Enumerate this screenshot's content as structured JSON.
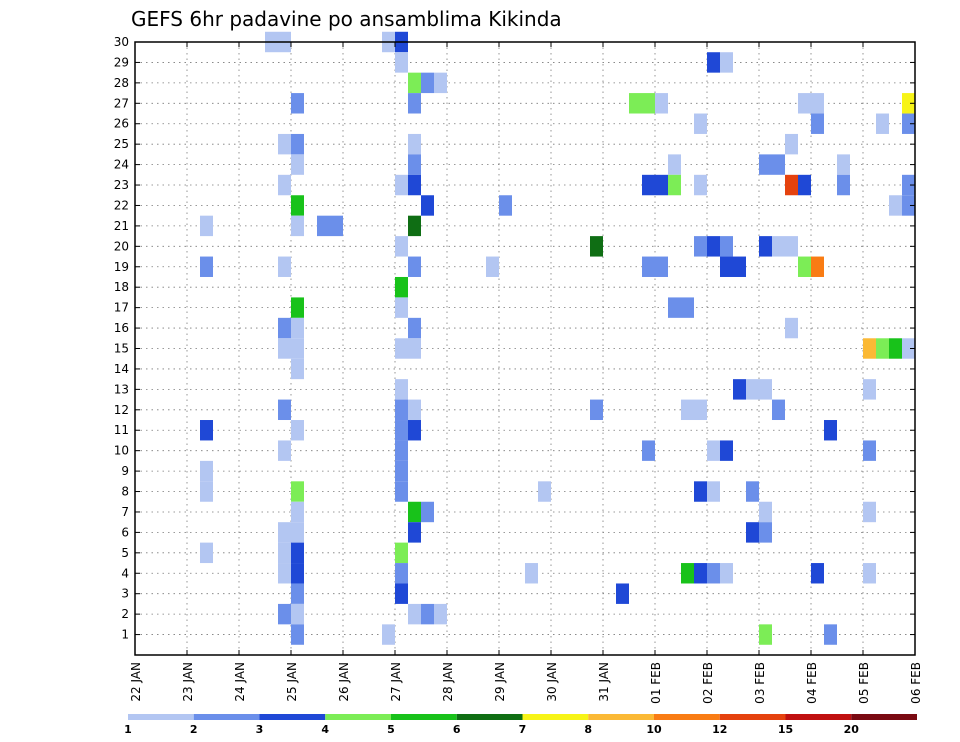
{
  "chart_data": {
    "type": "heatmap",
    "title": "GEFS 6hr padavine po ansamblima Kikinda",
    "xlabel": "",
    "ylabel": "",
    "x_ticks": [
      "22 JAN",
      "23 JAN",
      "24 JAN",
      "25 JAN",
      "26 JAN",
      "27 JAN",
      "28 JAN",
      "29 JAN",
      "30 JAN",
      "31 JAN",
      "01 FEB",
      "02 FEB",
      "03 FEB",
      "04 FEB",
      "05 FEB",
      "06 FEB"
    ],
    "x_range": [
      "22 JAN 00Z",
      "06 FEB 00Z"
    ],
    "time_step_hours": 6,
    "y_ticks": [
      1,
      2,
      3,
      4,
      5,
      6,
      7,
      8,
      9,
      10,
      11,
      12,
      13,
      14,
      15,
      16,
      17,
      18,
      19,
      20,
      21,
      22,
      23,
      24,
      25,
      26,
      27,
      28,
      29,
      30
    ],
    "y_range": [
      0,
      30
    ],
    "grid": true,
    "colorbar": {
      "levels": [
        "1",
        "2",
        "3",
        "4",
        "5",
        "6",
        "7",
        "8",
        "10",
        "12",
        "15",
        "20"
      ],
      "colors": [
        "#b3c6f2",
        "#6b8fea",
        "#1f48d6",
        "#7ced56",
        "#18c21a",
        "#0f6e14",
        "#f7f417",
        "#fbb935",
        "#f97c14",
        "#e5420e",
        "#c01010",
        "#7a0a12"
      ]
    },
    "cells": [
      {
        "x": "24 JAN 12Z",
        "y": 30,
        "c": 0
      },
      {
        "x": "24 JAN 18Z",
        "y": 30,
        "c": 0
      },
      {
        "x": "26 JAN 18Z",
        "y": 30,
        "c": 0
      },
      {
        "x": "27 JAN 00Z",
        "y": 30,
        "c": 2
      },
      {
        "x": "27 JAN 00Z",
        "y": 29,
        "c": 0
      },
      {
        "x": "02 FEB 00Z",
        "y": 29,
        "c": 2
      },
      {
        "x": "02 FEB 06Z",
        "y": 29,
        "c": 0
      },
      {
        "x": "27 JAN 06Z",
        "y": 28,
        "c": 3
      },
      {
        "x": "27 JAN 12Z",
        "y": 28,
        "c": 1
      },
      {
        "x": "27 JAN 18Z",
        "y": 28,
        "c": 0
      },
      {
        "x": "25 JAN 00Z",
        "y": 27,
        "c": 1
      },
      {
        "x": "27 JAN 06Z",
        "y": 27,
        "c": 1
      },
      {
        "x": "31 JAN 12Z",
        "y": 27,
        "c": 3
      },
      {
        "x": "31 JAN 18Z",
        "y": 27,
        "c": 3
      },
      {
        "x": "01 FEB 00Z",
        "y": 27,
        "c": 0
      },
      {
        "x": "03 FEB 18Z",
        "y": 27,
        "c": 0
      },
      {
        "x": "04 FEB 00Z",
        "y": 27,
        "c": 0
      },
      {
        "x": "05 FEB 18Z",
        "y": 27,
        "c": 6
      },
      {
        "x": "01 FEB 18Z",
        "y": 26,
        "c": 0
      },
      {
        "x": "04 FEB 00Z",
        "y": 26,
        "c": 1
      },
      {
        "x": "05 FEB 06Z",
        "y": 26,
        "c": 0
      },
      {
        "x": "05 FEB 18Z",
        "y": 26,
        "c": 1
      },
      {
        "x": "24 JAN 18Z",
        "y": 25,
        "c": 0
      },
      {
        "x": "25 JAN 00Z",
        "y": 25,
        "c": 1
      },
      {
        "x": "27 JAN 06Z",
        "y": 25,
        "c": 0
      },
      {
        "x": "03 FEB 12Z",
        "y": 25,
        "c": 0
      },
      {
        "x": "25 JAN 00Z",
        "y": 24,
        "c": 0
      },
      {
        "x": "27 JAN 06Z",
        "y": 24,
        "c": 1
      },
      {
        "x": "01 FEB 06Z",
        "y": 24,
        "c": 0
      },
      {
        "x": "03 FEB 00Z",
        "y": 24,
        "c": 1
      },
      {
        "x": "03 FEB 06Z",
        "y": 24,
        "c": 1
      },
      {
        "x": "04 FEB 12Z",
        "y": 24,
        "c": 0
      },
      {
        "x": "24 JAN 18Z",
        "y": 23,
        "c": 0
      },
      {
        "x": "27 JAN 00Z",
        "y": 23,
        "c": 0
      },
      {
        "x": "27 JAN 06Z",
        "y": 23,
        "c": 2
      },
      {
        "x": "31 JAN 18Z",
        "y": 23,
        "c": 2
      },
      {
        "x": "01 FEB 00Z",
        "y": 23,
        "c": 2
      },
      {
        "x": "01 FEB 06Z",
        "y": 23,
        "c": 3
      },
      {
        "x": "01 FEB 18Z",
        "y": 23,
        "c": 0
      },
      {
        "x": "03 FEB 12Z",
        "y": 23,
        "c": 9
      },
      {
        "x": "03 FEB 18Z",
        "y": 23,
        "c": 2
      },
      {
        "x": "04 FEB 12Z",
        "y": 23,
        "c": 1
      },
      {
        "x": "05 FEB 18Z",
        "y": 23,
        "c": 1
      },
      {
        "x": "25 JAN 00Z",
        "y": 22,
        "c": 4
      },
      {
        "x": "27 JAN 12Z",
        "y": 22,
        "c": 2
      },
      {
        "x": "29 JAN 00Z",
        "y": 22,
        "c": 1
      },
      {
        "x": "05 FEB 12Z",
        "y": 22,
        "c": 0
      },
      {
        "x": "05 FEB 18Z",
        "y": 22,
        "c": 1
      },
      {
        "x": "23 JAN 06Z",
        "y": 21,
        "c": 0
      },
      {
        "x": "25 JAN 00Z",
        "y": 21,
        "c": 0
      },
      {
        "x": "25 JAN 12Z",
        "y": 21,
        "c": 1
      },
      {
        "x": "25 JAN 18Z",
        "y": 21,
        "c": 1
      },
      {
        "x": "27 JAN 06Z",
        "y": 21,
        "c": 5
      },
      {
        "x": "27 JAN 00Z",
        "y": 20,
        "c": 0
      },
      {
        "x": "30 JAN 18Z",
        "y": 20,
        "c": 5
      },
      {
        "x": "01 FEB 18Z",
        "y": 20,
        "c": 1
      },
      {
        "x": "02 FEB 00Z",
        "y": 20,
        "c": 2
      },
      {
        "x": "02 FEB 06Z",
        "y": 20,
        "c": 1
      },
      {
        "x": "03 FEB 00Z",
        "y": 20,
        "c": 2
      },
      {
        "x": "03 FEB 06Z",
        "y": 20,
        "c": 0
      },
      {
        "x": "03 FEB 12Z",
        "y": 20,
        "c": 0
      },
      {
        "x": "23 JAN 06Z",
        "y": 19,
        "c": 1
      },
      {
        "x": "24 JAN 18Z",
        "y": 19,
        "c": 0
      },
      {
        "x": "27 JAN 06Z",
        "y": 19,
        "c": 1
      },
      {
        "x": "28 JAN 18Z",
        "y": 19,
        "c": 0
      },
      {
        "x": "31 JAN 18Z",
        "y": 19,
        "c": 1
      },
      {
        "x": "01 FEB 00Z",
        "y": 19,
        "c": 1
      },
      {
        "x": "02 FEB 06Z",
        "y": 19,
        "c": 2
      },
      {
        "x": "02 FEB 12Z",
        "y": 19,
        "c": 2
      },
      {
        "x": "03 FEB 18Z",
        "y": 19,
        "c": 3
      },
      {
        "x": "04 FEB 00Z",
        "y": 19,
        "c": 8
      },
      {
        "x": "27 JAN 00Z",
        "y": 18,
        "c": 4
      },
      {
        "x": "25 JAN 00Z",
        "y": 17,
        "c": 4
      },
      {
        "x": "27 JAN 00Z",
        "y": 17,
        "c": 0
      },
      {
        "x": "01 FEB 06Z",
        "y": 17,
        "c": 1
      },
      {
        "x": "01 FEB 12Z",
        "y": 17,
        "c": 1
      },
      {
        "x": "24 JAN 18Z",
        "y": 16,
        "c": 1
      },
      {
        "x": "25 JAN 00Z",
        "y": 16,
        "c": 0
      },
      {
        "x": "27 JAN 06Z",
        "y": 16,
        "c": 1
      },
      {
        "x": "03 FEB 12Z",
        "y": 16,
        "c": 0
      },
      {
        "x": "24 JAN 18Z",
        "y": 15,
        "c": 0
      },
      {
        "x": "25 JAN 00Z",
        "y": 15,
        "c": 0
      },
      {
        "x": "27 JAN 00Z",
        "y": 15,
        "c": 0
      },
      {
        "x": "27 JAN 06Z",
        "y": 15,
        "c": 0
      },
      {
        "x": "05 FEB 00Z",
        "y": 15,
        "c": 7
      },
      {
        "x": "05 FEB 06Z",
        "y": 15,
        "c": 3
      },
      {
        "x": "05 FEB 12Z",
        "y": 15,
        "c": 4
      },
      {
        "x": "05 FEB 18Z",
        "y": 15,
        "c": 0
      },
      {
        "x": "25 JAN 00Z",
        "y": 14,
        "c": 0
      },
      {
        "x": "27 JAN 00Z",
        "y": 13,
        "c": 0
      },
      {
        "x": "02 FEB 12Z",
        "y": 13,
        "c": 2
      },
      {
        "x": "02 FEB 18Z",
        "y": 13,
        "c": 0
      },
      {
        "x": "03 FEB 00Z",
        "y": 13,
        "c": 0
      },
      {
        "x": "05 FEB 00Z",
        "y": 13,
        "c": 0
      },
      {
        "x": "24 JAN 18Z",
        "y": 12,
        "c": 1
      },
      {
        "x": "27 JAN 00Z",
        "y": 12,
        "c": 1
      },
      {
        "x": "27 JAN 06Z",
        "y": 12,
        "c": 0
      },
      {
        "x": "30 JAN 18Z",
        "y": 12,
        "c": 1
      },
      {
        "x": "01 FEB 12Z",
        "y": 12,
        "c": 0
      },
      {
        "x": "01 FEB 18Z",
        "y": 12,
        "c": 0
      },
      {
        "x": "03 FEB 06Z",
        "y": 12,
        "c": 1
      },
      {
        "x": "23 JAN 06Z",
        "y": 11,
        "c": 2
      },
      {
        "x": "25 JAN 00Z",
        "y": 11,
        "c": 0
      },
      {
        "x": "27 JAN 00Z",
        "y": 11,
        "c": 1
      },
      {
        "x": "27 JAN 06Z",
        "y": 11,
        "c": 2
      },
      {
        "x": "04 FEB 06Z",
        "y": 11,
        "c": 2
      },
      {
        "x": "24 JAN 18Z",
        "y": 10,
        "c": 0
      },
      {
        "x": "27 JAN 00Z",
        "y": 10,
        "c": 1
      },
      {
        "x": "31 JAN 18Z",
        "y": 10,
        "c": 1
      },
      {
        "x": "02 FEB 00Z",
        "y": 10,
        "c": 0
      },
      {
        "x": "02 FEB 06Z",
        "y": 10,
        "c": 2
      },
      {
        "x": "05 FEB 00Z",
        "y": 10,
        "c": 1
      },
      {
        "x": "23 JAN 06Z",
        "y": 9,
        "c": 0
      },
      {
        "x": "27 JAN 00Z",
        "y": 9,
        "c": 1
      },
      {
        "x": "23 JAN 06Z",
        "y": 8,
        "c": 0
      },
      {
        "x": "25 JAN 00Z",
        "y": 8,
        "c": 3
      },
      {
        "x": "27 JAN 00Z",
        "y": 8,
        "c": 1
      },
      {
        "x": "29 JAN 18Z",
        "y": 8,
        "c": 0
      },
      {
        "x": "01 FEB 18Z",
        "y": 8,
        "c": 2
      },
      {
        "x": "02 FEB 00Z",
        "y": 8,
        "c": 0
      },
      {
        "x": "02 FEB 18Z",
        "y": 8,
        "c": 1
      },
      {
        "x": "25 JAN 00Z",
        "y": 7,
        "c": 0
      },
      {
        "x": "27 JAN 06Z",
        "y": 7,
        "c": 4
      },
      {
        "x": "27 JAN 12Z",
        "y": 7,
        "c": 1
      },
      {
        "x": "03 FEB 00Z",
        "y": 7,
        "c": 0
      },
      {
        "x": "05 FEB 00Z",
        "y": 7,
        "c": 0
      },
      {
        "x": "24 JAN 18Z",
        "y": 6,
        "c": 0
      },
      {
        "x": "25 JAN 00Z",
        "y": 6,
        "c": 0
      },
      {
        "x": "27 JAN 06Z",
        "y": 6,
        "c": 2
      },
      {
        "x": "02 FEB 18Z",
        "y": 6,
        "c": 2
      },
      {
        "x": "03 FEB 00Z",
        "y": 6,
        "c": 1
      },
      {
        "x": "23 JAN 06Z",
        "y": 5,
        "c": 0
      },
      {
        "x": "24 JAN 18Z",
        "y": 5,
        "c": 0
      },
      {
        "x": "25 JAN 00Z",
        "y": 5,
        "c": 2
      },
      {
        "x": "27 JAN 00Z",
        "y": 5,
        "c": 3
      },
      {
        "x": "24 JAN 18Z",
        "y": 4,
        "c": 0
      },
      {
        "x": "25 JAN 00Z",
        "y": 4,
        "c": 2
      },
      {
        "x": "27 JAN 00Z",
        "y": 4,
        "c": 1
      },
      {
        "x": "29 JAN 12Z",
        "y": 4,
        "c": 0
      },
      {
        "x": "01 FEB 12Z",
        "y": 4,
        "c": 4
      },
      {
        "x": "01 FEB 18Z",
        "y": 4,
        "c": 2
      },
      {
        "x": "02 FEB 00Z",
        "y": 4,
        "c": 1
      },
      {
        "x": "02 FEB 06Z",
        "y": 4,
        "c": 0
      },
      {
        "x": "04 FEB 00Z",
        "y": 4,
        "c": 2
      },
      {
        "x": "05 FEB 00Z",
        "y": 4,
        "c": 0
      },
      {
        "x": "25 JAN 00Z",
        "y": 3,
        "c": 1
      },
      {
        "x": "27 JAN 00Z",
        "y": 3,
        "c": 2
      },
      {
        "x": "31 JAN 06Z",
        "y": 3,
        "c": 2
      },
      {
        "x": "24 JAN 18Z",
        "y": 2,
        "c": 1
      },
      {
        "x": "25 JAN 00Z",
        "y": 2,
        "c": 0
      },
      {
        "x": "27 JAN 06Z",
        "y": 2,
        "c": 0
      },
      {
        "x": "27 JAN 12Z",
        "y": 2,
        "c": 1
      },
      {
        "x": "27 JAN 18Z",
        "y": 2,
        "c": 0
      },
      {
        "x": "25 JAN 00Z",
        "y": 1,
        "c": 1
      },
      {
        "x": "26 JAN 18Z",
        "y": 1,
        "c": 0
      },
      {
        "x": "03 FEB 00Z",
        "y": 1,
        "c": 3
      },
      {
        "x": "04 FEB 06Z",
        "y": 1,
        "c": 1
      }
    ]
  }
}
